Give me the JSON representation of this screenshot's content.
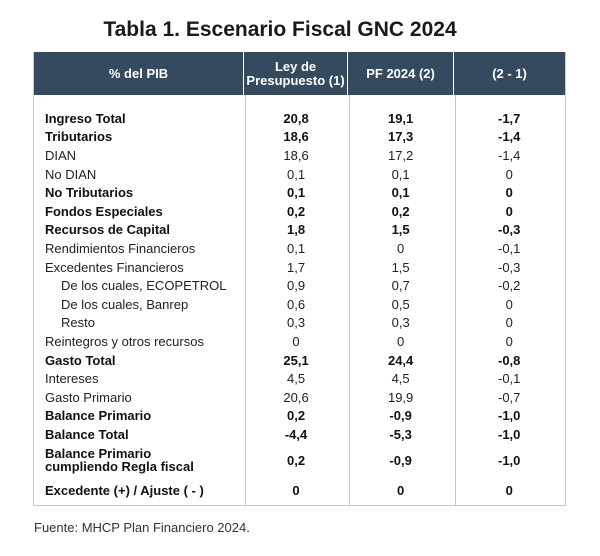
{
  "title": "Tabla 1. Escenario Fiscal GNC 2024",
  "headers": [
    "% del PIB",
    "Ley de\nPresupuesto (1)",
    "PF 2024 (2)",
    "(2 - 1)"
  ],
  "rows": [
    {
      "label": "Ingreso Total",
      "v1": "20,8",
      "v2": "19,1",
      "v3": "-1,7",
      "bold": true
    },
    {
      "label": "Tributarios",
      "v1": "18,6",
      "v2": "17,3",
      "v3": "-1,4",
      "bold": true
    },
    {
      "label": "DIAN",
      "v1": "18,6",
      "v2": "17,2",
      "v3": "-1,4"
    },
    {
      "label": "No DIAN",
      "v1": "0,1",
      "v2": "0,1",
      "v3": "0"
    },
    {
      "label": "No Tributarios",
      "v1": "0,1",
      "v2": "0,1",
      "v3": "0",
      "bold": true
    },
    {
      "label": "Fondos Especiales",
      "v1": "0,2",
      "v2": "0,2",
      "v3": "0",
      "bold": true
    },
    {
      "label": "Recursos de Capital",
      "v1": "1,8",
      "v2": "1,5",
      "v3": "-0,3",
      "bold": true
    },
    {
      "label": "Rendimientos Financieros",
      "v1": "0,1",
      "v2": "0",
      "v3": "-0,1"
    },
    {
      "label": "Excedentes Financieros",
      "v1": "1,7",
      "v2": "1,5",
      "v3": "-0,3"
    },
    {
      "label": "De los cuales, ECOPETROL",
      "v1": "0,9",
      "v2": "0,7",
      "v3": "-0,2",
      "indent": true
    },
    {
      "label": "De los cuales, Banrep",
      "v1": "0,6",
      "v2": "0,5",
      "v3": "0",
      "indent": true
    },
    {
      "label": "Resto",
      "v1": "0,3",
      "v2": "0,3",
      "v3": "0",
      "indent": true
    },
    {
      "label": "Reintegros y otros recursos",
      "v1": "0",
      "v2": "0",
      "v3": "0"
    },
    {
      "label": "Gasto Total",
      "v1": "25,1",
      "v2": "24,4",
      "v3": "-0,8",
      "bold": true
    },
    {
      "label": "Intereses",
      "v1": "4,5",
      "v2": "4,5",
      "v3": "-0,1"
    },
    {
      "label": "Gasto Primario",
      "v1": "20,6",
      "v2": "19,9",
      "v3": "-0,7"
    },
    {
      "label": "Balance Primario",
      "v1": "0,2",
      "v2": "-0,9",
      "v3": "-1,0",
      "bold": true
    },
    {
      "label": "Balance Total",
      "v1": "-4,4",
      "v2": "-5,3",
      "v3": "-1,0",
      "bold": true
    },
    {
      "label": "Balance Primario\ncumpliendo Regla fiscal",
      "v1": "0,2",
      "v2": "-0,9",
      "v3": "-1,0",
      "bold": true,
      "tall": true
    },
    {
      "label": "Excedente (+) / Ajuste ( - )",
      "v1": "0",
      "v2": "0",
      "v3": "0",
      "bold": true,
      "last": true
    }
  ],
  "source": "Fuente: MHCP Plan Financiero 2024."
}
